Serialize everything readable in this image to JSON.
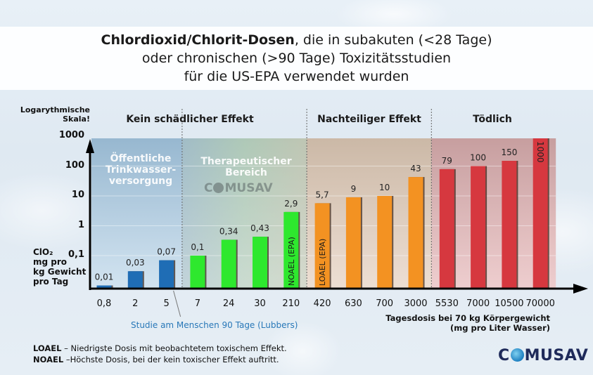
{
  "title": {
    "bold": "Chlordioxid/Chlorit-Dosen",
    "line1_rest": ", die in subakuten (<28 Tage)",
    "line2": "oder chronischen (>90 Tage) Toxizitätsstudien",
    "line3": "für die US-EPA verwendet wurden"
  },
  "y_axis": {
    "title_line1": "Logarythmische",
    "title_line2": "Skala!",
    "unit_lines": [
      "ClO₂",
      "mg pro",
      "kg Gewicht",
      "pro Tag"
    ]
  },
  "categories_header": {
    "no_effect": "Kein schädlicher Effekt",
    "adverse": "Nachteiliger Effekt",
    "lethal": "Tödlich"
  },
  "zones": {
    "public_water": [
      "Öffentliche",
      "Trinkwasser-",
      "versorgung"
    ],
    "therapeutic": [
      "Therapeutischer",
      "Bereich"
    ]
  },
  "watermark": {
    "left": "C",
    "right": "MUSAV"
  },
  "annotations": {
    "lubbers": "Studie am Menschen 90 Tage (Lubbers)",
    "xaxis_title_line1": "Tagesdosis bei 70 kg Körpergewicht",
    "xaxis_title_line2": "(mg pro Liter Wasser)"
  },
  "legend": {
    "loael_term": "LOAEL",
    "loael_text": " – Niedrigste Dosis mit beobachtetem toxischem Effekt.",
    "noael_term": "NOAEL",
    "noael_text": " –Höchste Dosis, bei der kein toxischer Effekt auftritt."
  },
  "logo": {
    "left": "C",
    "right": "MUSAV"
  },
  "colors": {
    "blue": "#1f6db5",
    "green": "#2ee82e",
    "orange": "#f39222",
    "red": "#d6383f"
  },
  "chart_data": {
    "type": "bar",
    "title": "Chlordioxid/Chlorit-Dosen, die in subakuten (<28 Tage) oder chronischen (>90 Tage) Toxizitätsstudien für die US-EPA verwendet wurden",
    "xlabel": "Tagesdosis bei 70 kg Körpergewicht (mg pro Liter Wasser)",
    "ylabel": "ClO₂ mg pro kg Gewicht pro Tag (Logarythmische Skala!)",
    "yscale": "log",
    "ylim": [
      0.01,
      1000
    ],
    "yticks": [
      {
        "value": 0.1,
        "label": "0,1"
      },
      {
        "value": 1,
        "label": "1"
      },
      {
        "value": 10,
        "label": "10"
      },
      {
        "value": 100,
        "label": "100"
      },
      {
        "value": 1000,
        "label": "1000"
      }
    ],
    "grid": true,
    "categories": [
      "0,8",
      "2",
      "5",
      "7",
      "24",
      "30",
      "210",
      "420",
      "630",
      "700",
      "3000",
      "5530",
      "7000",
      "10500",
      "70000"
    ],
    "values": [
      0.01,
      0.03,
      0.07,
      0.1,
      0.34,
      0.43,
      2.9,
      5.7,
      9,
      10,
      43,
      79,
      100,
      150,
      1000
    ],
    "value_labels": [
      "0,01",
      "0,03",
      "0,07",
      "0,1",
      "0,34",
      "0,43",
      "2,9",
      "5,7",
      "9",
      "10",
      "43",
      "79",
      "100",
      "150",
      "1000"
    ],
    "bar_groups": [
      "blue",
      "blue",
      "blue",
      "green",
      "green",
      "green",
      "green",
      "orange",
      "orange",
      "orange",
      "orange",
      "red",
      "red",
      "red",
      "red"
    ],
    "bar_inner_labels": {
      "6": "NOAEL (EPA)",
      "7": "LOAEL (EPA)"
    },
    "regions": [
      {
        "name": "Kein schädlicher Effekt",
        "from": 0,
        "to": 6
      },
      {
        "name": "Nachteiliger Effekt",
        "from": 7,
        "to": 10
      },
      {
        "name": "Tödlich",
        "from": 11,
        "to": 14
      }
    ]
  }
}
